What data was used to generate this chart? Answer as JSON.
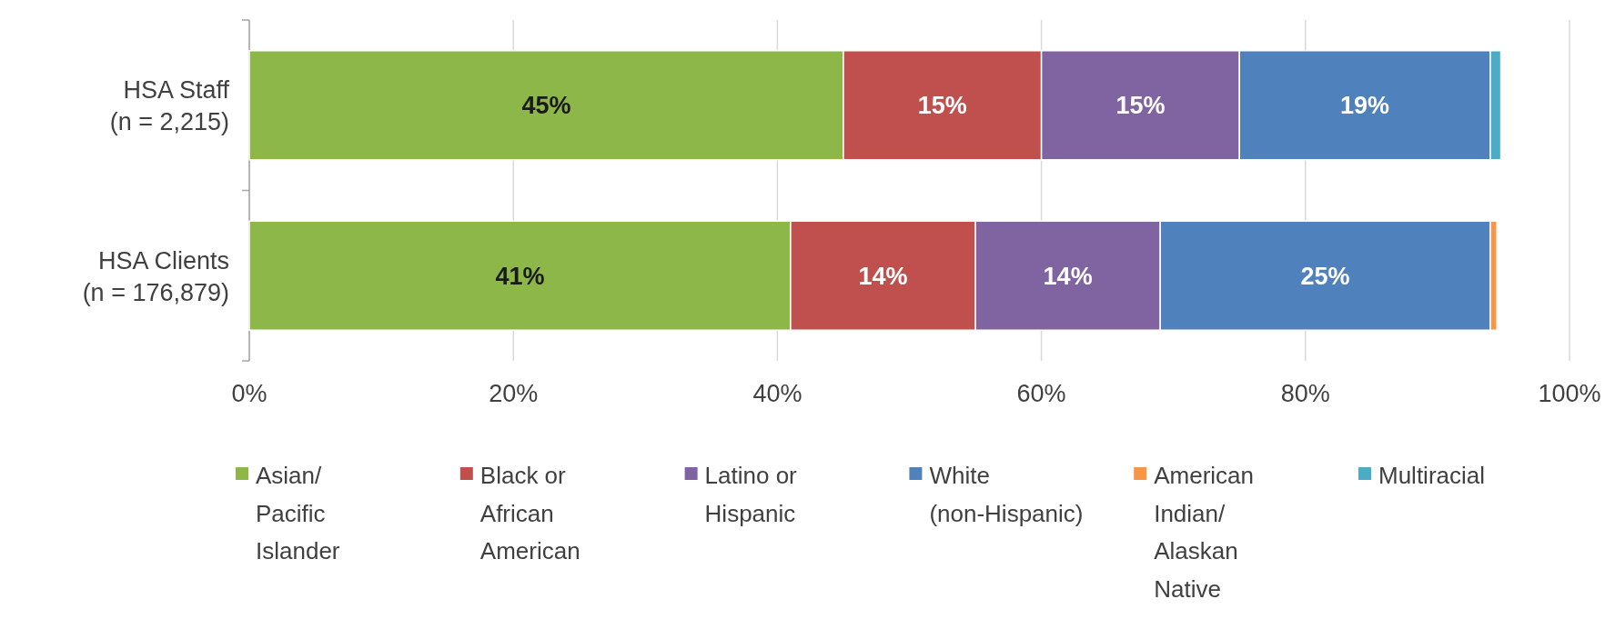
{
  "chart_data": {
    "type": "bar",
    "orientation": "horizontal",
    "stacked": true,
    "categories": [
      "HSA Staff\n(n = 2,215)",
      "HSA Clients\n(n = 176,879)"
    ],
    "series": [
      {
        "name": "Asian/ Pacific Islander",
        "color": "#8db849",
        "values": [
          45,
          41
        ],
        "value_labels": [
          "45%",
          "41%"
        ]
      },
      {
        "name": "Black or African American",
        "color": "#c0504d",
        "values": [
          15,
          14
        ],
        "value_labels": [
          "15%",
          "14%"
        ]
      },
      {
        "name": "Latino or Hispanic",
        "color": "#8064a2",
        "values": [
          15,
          14
        ],
        "value_labels": [
          "15%",
          "14%"
        ]
      },
      {
        "name": "White (non-Hispanic)",
        "color": "#4f81bd",
        "values": [
          19,
          25
        ],
        "value_labels": [
          "19%",
          "25%"
        ]
      },
      {
        "name": "American Indian/ Alaskan Native",
        "color": "#f79646",
        "values": [
          0,
          0.5
        ],
        "value_labels": [
          null,
          null
        ]
      },
      {
        "name": "Multiracial",
        "color": "#4bacc6",
        "values": [
          0.8,
          0
        ],
        "value_labels": [
          null,
          null
        ]
      }
    ],
    "xlim": [
      0,
      100
    ],
    "xticks": [
      {
        "value": 0,
        "label": "0%"
      },
      {
        "value": 20,
        "label": "20%"
      },
      {
        "value": 40,
        "label": "40%"
      },
      {
        "value": 60,
        "label": "60%"
      },
      {
        "value": 80,
        "label": "80%"
      },
      {
        "value": 100,
        "label": "100%"
      }
    ],
    "grid": "x",
    "legend": "bottom"
  }
}
